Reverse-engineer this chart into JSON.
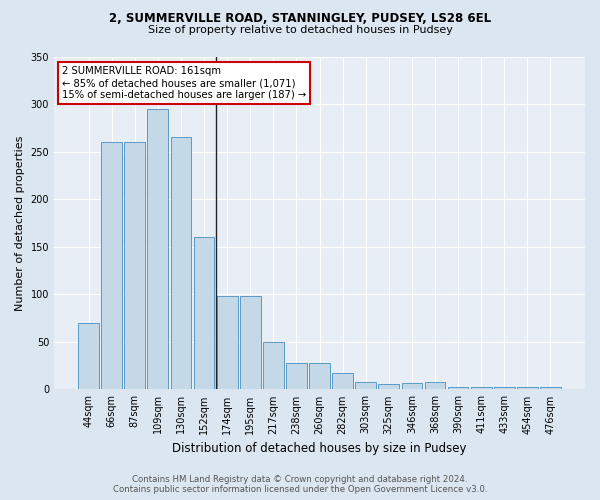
{
  "title1": "2, SUMMERVILLE ROAD, STANNINGLEY, PUDSEY, LS28 6EL",
  "title2": "Size of property relative to detached houses in Pudsey",
  "xlabel": "Distribution of detached houses by size in Pudsey",
  "ylabel": "Number of detached properties",
  "footer1": "Contains HM Land Registry data © Crown copyright and database right 2024.",
  "footer2": "Contains public sector information licensed under the Open Government Licence v3.0.",
  "categories": [
    "44sqm",
    "66sqm",
    "87sqm",
    "109sqm",
    "130sqm",
    "152sqm",
    "174sqm",
    "195sqm",
    "217sqm",
    "238sqm",
    "260sqm",
    "282sqm",
    "303sqm",
    "325sqm",
    "346sqm",
    "368sqm",
    "390sqm",
    "411sqm",
    "433sqm",
    "454sqm",
    "476sqm"
  ],
  "values": [
    70,
    260,
    260,
    295,
    265,
    160,
    98,
    98,
    50,
    28,
    28,
    17,
    8,
    6,
    7,
    8,
    3,
    3,
    3,
    3,
    3
  ],
  "bar_color": "#c5d8e8",
  "bar_edge_color": "#5a9ac5",
  "annotation_line1": "2 SUMMERVILLE ROAD: 161sqm",
  "annotation_line2": "← 85% of detached houses are smaller (1,071)",
  "annotation_line3": "15% of semi-detached houses are larger (187) →",
  "vline_index": 5.5,
  "vline_color": "#222222",
  "annotation_box_facecolor": "#ffffff",
  "annotation_box_edgecolor": "#cc0000",
  "bg_color": "#dce6f0",
  "plot_bg_color": "#e8eef5",
  "grid_color": "#ffffff",
  "ylim": [
    0,
    350
  ],
  "yticks": [
    0,
    50,
    100,
    150,
    200,
    250,
    300,
    350
  ],
  "title1_fontsize": 8.5,
  "title2_fontsize": 8.0,
  "ylabel_fontsize": 8.0,
  "xlabel_fontsize": 8.5,
  "footer_fontsize": 6.2,
  "tick_fontsize": 7.0,
  "annot_fontsize": 7.2
}
